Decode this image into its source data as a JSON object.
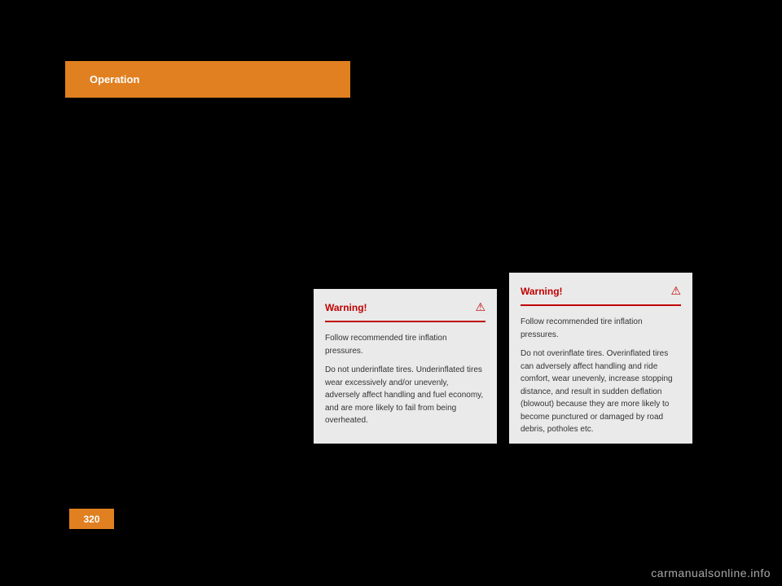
{
  "header": {
    "title": "Operation"
  },
  "warning1": {
    "title": "Warning!",
    "icon": "⚠",
    "para1": "Follow recommended tire inflation pressures.",
    "para2": "Do not underinflate tires. Underinflated tires wear excessively and/or unevenly, adversely affect handling and fuel economy, and are more likely to fail from being overheated."
  },
  "warning2": {
    "title": "Warning!",
    "icon": "⚠",
    "para1": "Follow recommended tire inflation pressures.",
    "para2": "Do not overinflate tires. Overinflated tires can adversely affect handling and ride comfort, wear unevenly, increase stopping distance, and result in sudden deflation (blowout) because they are more likely to become punctured or damaged by road debris, potholes etc."
  },
  "page_number": "320",
  "watermark": "carmanualsonline.info"
}
